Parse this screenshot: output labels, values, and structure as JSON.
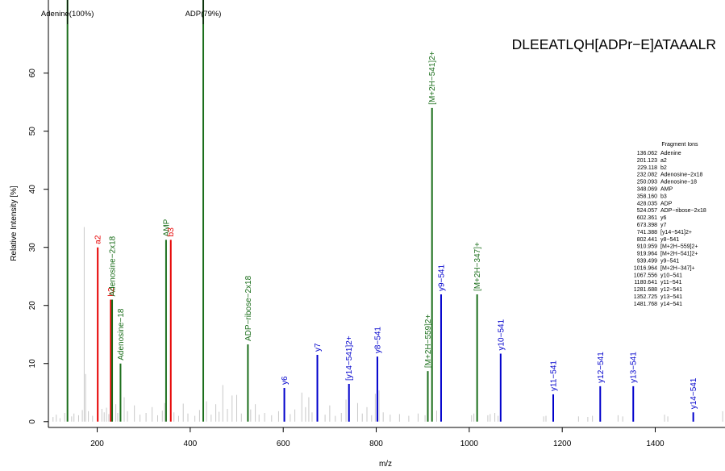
{
  "colors": {
    "background": "#ffffff",
    "axis": "#000000",
    "noise": "#c8c8c8",
    "a_b_ions": "#e60000",
    "y_ions": "#0000cc",
    "diagnostic": "#1b6e1b"
  },
  "chart_data": {
    "type": "bar",
    "title": "DLEEATLQH[ADPr−E]ATAAALR",
    "xlabel": "m/z",
    "ylabel": "Relative Intensity [%]",
    "xlim": [
      95,
      1550
    ],
    "ylim": [
      -1,
      68
    ],
    "x_ticks": [
      200,
      400,
      600,
      800,
      1000,
      1200,
      1400
    ],
    "y_ticks": [
      0,
      10,
      20,
      30,
      40,
      50,
      60
    ],
    "top_labels": [
      {
        "text": "Adenine(100%)",
        "mz": 136.062
      },
      {
        "text": "ADP(79%)",
        "mz": 428.035
      }
    ],
    "legend": {
      "title": "Fragment Ions",
      "placement": "right",
      "entries": [
        {
          "mz": "136.062",
          "name": "Adenine"
        },
        {
          "mz": "201.123",
          "name": "a2"
        },
        {
          "mz": "229.118",
          "name": "b2"
        },
        {
          "mz": "232.082",
          "name": "Adenosine−2x18"
        },
        {
          "mz": "250.093",
          "name": "Adenosine−18"
        },
        {
          "mz": "348.069",
          "name": "AMP"
        },
        {
          "mz": "358.160",
          "name": "b3"
        },
        {
          "mz": "428.035",
          "name": "ADP"
        },
        {
          "mz": "524.057",
          "name": "ADP−ribose−2x18"
        },
        {
          "mz": "602.361",
          "name": "y6"
        },
        {
          "mz": "673.398",
          "name": "y7"
        },
        {
          "mz": "741.388",
          "name": "[y14−541]2+"
        },
        {
          "mz": "802.441",
          "name": "y8−541"
        },
        {
          "mz": "910.959",
          "name": "[M+2H−559]2+"
        },
        {
          "mz": "919.964",
          "name": "[M+2H−541]2+"
        },
        {
          "mz": "939.499",
          "name": "y9−541"
        },
        {
          "mz": "1016.964",
          "name": "[M+2H−347]+"
        },
        {
          "mz": "1067.556",
          "name": "y10−541"
        },
        {
          "mz": "1180.641",
          "name": "y11−541"
        },
        {
          "mz": "1281.688",
          "name": "y12−541"
        },
        {
          "mz": "1352.725",
          "name": "y13−541"
        },
        {
          "mz": "1481.768",
          "name": "y14−541"
        }
      ]
    },
    "series": [
      {
        "name": "Fragment Ions",
        "points": [
          {
            "mz": 136.062,
            "intensity": 100,
            "label": "",
            "kind": "diagnostic"
          },
          {
            "mz": 201.123,
            "intensity": 30,
            "label": "a2",
            "kind": "ab"
          },
          {
            "mz": 229.118,
            "intensity": 21,
            "label": "b2",
            "kind": "ab"
          },
          {
            "mz": 232.082,
            "intensity": 21,
            "label": "Adenosine−2x18",
            "kind": "diagnostic"
          },
          {
            "mz": 250.093,
            "intensity": 10,
            "label": "Adenosine−18",
            "kind": "diagnostic"
          },
          {
            "mz": 348.069,
            "intensity": 31.3,
            "label": "AMP",
            "kind": "diagnostic"
          },
          {
            "mz": 358.16,
            "intensity": 31.3,
            "label": "b3",
            "kind": "ab"
          },
          {
            "mz": 428.035,
            "intensity": 79,
            "label": "",
            "kind": "diagnostic"
          },
          {
            "mz": 524.057,
            "intensity": 13.3,
            "label": "ADP−ribose−2x18",
            "kind": "diagnostic"
          },
          {
            "mz": 602.361,
            "intensity": 5.8,
            "label": "y6",
            "kind": "y"
          },
          {
            "mz": 673.398,
            "intensity": 11.5,
            "label": "y7",
            "kind": "y"
          },
          {
            "mz": 741.388,
            "intensity": 6.5,
            "label": "[y14−541]2+",
            "kind": "y"
          },
          {
            "mz": 802.441,
            "intensity": 11.2,
            "label": "y8−541",
            "kind": "y"
          },
          {
            "mz": 910.959,
            "intensity": 8.7,
            "label": "[M+2H−559]2+",
            "kind": "diagnostic"
          },
          {
            "mz": 919.964,
            "intensity": 54,
            "label": "[M+2H−541]2+",
            "kind": "diagnostic"
          },
          {
            "mz": 939.499,
            "intensity": 21.9,
            "label": "y9−541",
            "kind": "y"
          },
          {
            "mz": 1016.964,
            "intensity": 21.9,
            "label": "[M+2H−347]+",
            "kind": "diagnostic"
          },
          {
            "mz": 1067.556,
            "intensity": 11.7,
            "label": "y10−541",
            "kind": "y"
          },
          {
            "mz": 1180.641,
            "intensity": 4.7,
            "label": "y11−541",
            "kind": "y"
          },
          {
            "mz": 1281.688,
            "intensity": 6.1,
            "label": "y12−541",
            "kind": "y"
          },
          {
            "mz": 1352.725,
            "intensity": 6.1,
            "label": "y13−541",
            "kind": "y"
          },
          {
            "mz": 1481.768,
            "intensity": 1.6,
            "label": "y14−541",
            "kind": "y"
          }
        ]
      },
      {
        "name": "Unassigned peaks",
        "points": [
          {
            "mz": 105,
            "intensity": 0.8
          },
          {
            "mz": 112,
            "intensity": 1.2
          },
          {
            "mz": 120,
            "intensity": 0.6
          },
          {
            "mz": 130,
            "intensity": 1.5
          },
          {
            "mz": 145,
            "intensity": 0.9
          },
          {
            "mz": 150,
            "intensity": 1.4
          },
          {
            "mz": 160,
            "intensity": 1.1
          },
          {
            "mz": 168,
            "intensity": 2.0
          },
          {
            "mz": 172,
            "intensity": 33.5
          },
          {
            "mz": 175,
            "intensity": 8.2
          },
          {
            "mz": 181,
            "intensity": 1.8
          },
          {
            "mz": 190,
            "intensity": 1.0
          },
          {
            "mz": 210,
            "intensity": 2.2
          },
          {
            "mz": 215,
            "intensity": 1.6
          },
          {
            "mz": 220,
            "intensity": 2.4
          },
          {
            "mz": 225,
            "intensity": 1.3
          },
          {
            "mz": 240,
            "intensity": 3.0
          },
          {
            "mz": 244,
            "intensity": 1.5
          },
          {
            "mz": 258,
            "intensity": 4.2
          },
          {
            "mz": 265,
            "intensity": 1.8
          },
          {
            "mz": 280,
            "intensity": 2.8
          },
          {
            "mz": 292,
            "intensity": 1.2
          },
          {
            "mz": 305,
            "intensity": 1.5
          },
          {
            "mz": 318,
            "intensity": 2.5
          },
          {
            "mz": 330,
            "intensity": 1.1
          },
          {
            "mz": 340,
            "intensity": 1.9
          },
          {
            "mz": 345,
            "intensity": 3.2
          },
          {
            "mz": 365,
            "intensity": 1.6
          },
          {
            "mz": 375,
            "intensity": 1.0
          },
          {
            "mz": 385,
            "intensity": 3.1
          },
          {
            "mz": 395,
            "intensity": 1.4
          },
          {
            "mz": 410,
            "intensity": 1.0
          },
          {
            "mz": 420,
            "intensity": 2.0
          },
          {
            "mz": 435,
            "intensity": 3.5
          },
          {
            "mz": 445,
            "intensity": 1.2
          },
          {
            "mz": 455,
            "intensity": 3.0
          },
          {
            "mz": 462,
            "intensity": 1.7
          },
          {
            "mz": 470,
            "intensity": 6.3
          },
          {
            "mz": 480,
            "intensity": 2.2
          },
          {
            "mz": 490,
            "intensity": 4.5
          },
          {
            "mz": 500,
            "intensity": 4.6
          },
          {
            "mz": 510,
            "intensity": 1.4
          },
          {
            "mz": 530,
            "intensity": 2.1
          },
          {
            "mz": 540,
            "intensity": 3.0
          },
          {
            "mz": 548,
            "intensity": 1.2
          },
          {
            "mz": 560,
            "intensity": 1.5
          },
          {
            "mz": 575,
            "intensity": 1.1
          },
          {
            "mz": 590,
            "intensity": 1.8
          },
          {
            "mz": 615,
            "intensity": 1.3
          },
          {
            "mz": 625,
            "intensity": 2.1
          },
          {
            "mz": 640,
            "intensity": 5.0
          },
          {
            "mz": 648,
            "intensity": 2.5
          },
          {
            "mz": 655,
            "intensity": 4.2
          },
          {
            "mz": 662,
            "intensity": 1.6
          },
          {
            "mz": 690,
            "intensity": 1.2
          },
          {
            "mz": 700,
            "intensity": 2.8
          },
          {
            "mz": 712,
            "intensity": 1.0
          },
          {
            "mz": 725,
            "intensity": 1.5
          },
          {
            "mz": 735,
            "intensity": 3.8
          },
          {
            "mz": 760,
            "intensity": 3.2
          },
          {
            "mz": 770,
            "intensity": 1.4
          },
          {
            "mz": 780,
            "intensity": 2.5
          },
          {
            "mz": 790,
            "intensity": 1.1
          },
          {
            "mz": 798,
            "intensity": 4.8
          },
          {
            "mz": 806,
            "intensity": 5.4
          },
          {
            "mz": 815,
            "intensity": 1.6
          },
          {
            "mz": 830,
            "intensity": 1.2
          },
          {
            "mz": 850,
            "intensity": 1.3
          },
          {
            "mz": 870,
            "intensity": 1.0
          },
          {
            "mz": 890,
            "intensity": 1.4
          },
          {
            "mz": 905,
            "intensity": 1.1
          },
          {
            "mz": 930,
            "intensity": 1.9
          },
          {
            "mz": 1005,
            "intensity": 1.1
          },
          {
            "mz": 1010,
            "intensity": 1.4
          },
          {
            "mz": 1040,
            "intensity": 1.1
          },
          {
            "mz": 1045,
            "intensity": 1.3
          },
          {
            "mz": 1055,
            "intensity": 1.5
          },
          {
            "mz": 1062,
            "intensity": 1.0
          },
          {
            "mz": 1160,
            "intensity": 0.9
          },
          {
            "mz": 1165,
            "intensity": 1.0
          },
          {
            "mz": 1235,
            "intensity": 0.9
          },
          {
            "mz": 1255,
            "intensity": 0.8
          },
          {
            "mz": 1265,
            "intensity": 1.0
          },
          {
            "mz": 1320,
            "intensity": 1.1
          },
          {
            "mz": 1330,
            "intensity": 0.9
          },
          {
            "mz": 1420,
            "intensity": 1.2
          },
          {
            "mz": 1427,
            "intensity": 0.9
          },
          {
            "mz": 1545,
            "intensity": 1.8
          }
        ]
      }
    ]
  }
}
